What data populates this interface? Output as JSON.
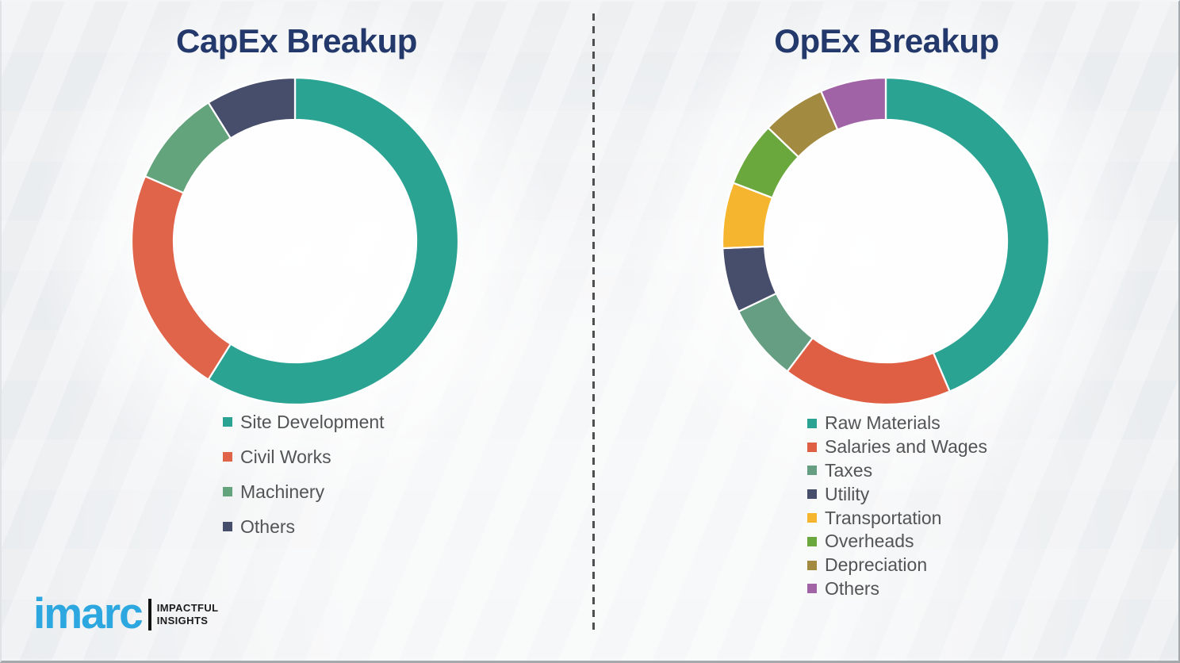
{
  "page": {
    "background_color": "#eef0f2",
    "divider_style": "vertical-dashed"
  },
  "logo": {
    "brand": "imarc",
    "brand_color": "#2CA7E0",
    "tagline_line1": "IMPACTFUL",
    "tagline_line2": "INSIGHTS",
    "tagline_color": "#1b1b1b"
  },
  "chart_data": [
    {
      "type": "pie",
      "variant": "donut",
      "title": "CapEx Breakup",
      "title_color": "#24396B",
      "start_angle_deg": 0,
      "direction": "clockwise",
      "inner_radius_ratio": 0.745,
      "legend_position": "bottom",
      "labels": [
        "Site Development",
        "Civil Works",
        "Machinery",
        "Others"
      ],
      "values": [
        58.9,
        22.6,
        9.6,
        8.9
      ],
      "colors": [
        "#2BA393",
        "#E0644A",
        "#63A47C",
        "#474E6B"
      ]
    },
    {
      "type": "pie",
      "variant": "donut",
      "title": "OpEx Breakup",
      "title_color": "#24396B",
      "start_angle_deg": 0,
      "direction": "clockwise",
      "inner_radius_ratio": 0.745,
      "legend_position": "bottom",
      "labels": [
        "Raw Materials",
        "Salaries and Wages",
        "Taxes",
        "Utility",
        "Transportation",
        "Overheads",
        "Depreciation",
        "Others"
      ],
      "values": [
        43.6,
        16.7,
        7.6,
        6.4,
        6.5,
        6.4,
        6.3,
        6.5
      ],
      "colors": [
        "#2BA393",
        "#DF5F44",
        "#659E82",
        "#474E6B",
        "#F5B52E",
        "#6AA83E",
        "#A38A41",
        "#A064A6"
      ]
    }
  ]
}
